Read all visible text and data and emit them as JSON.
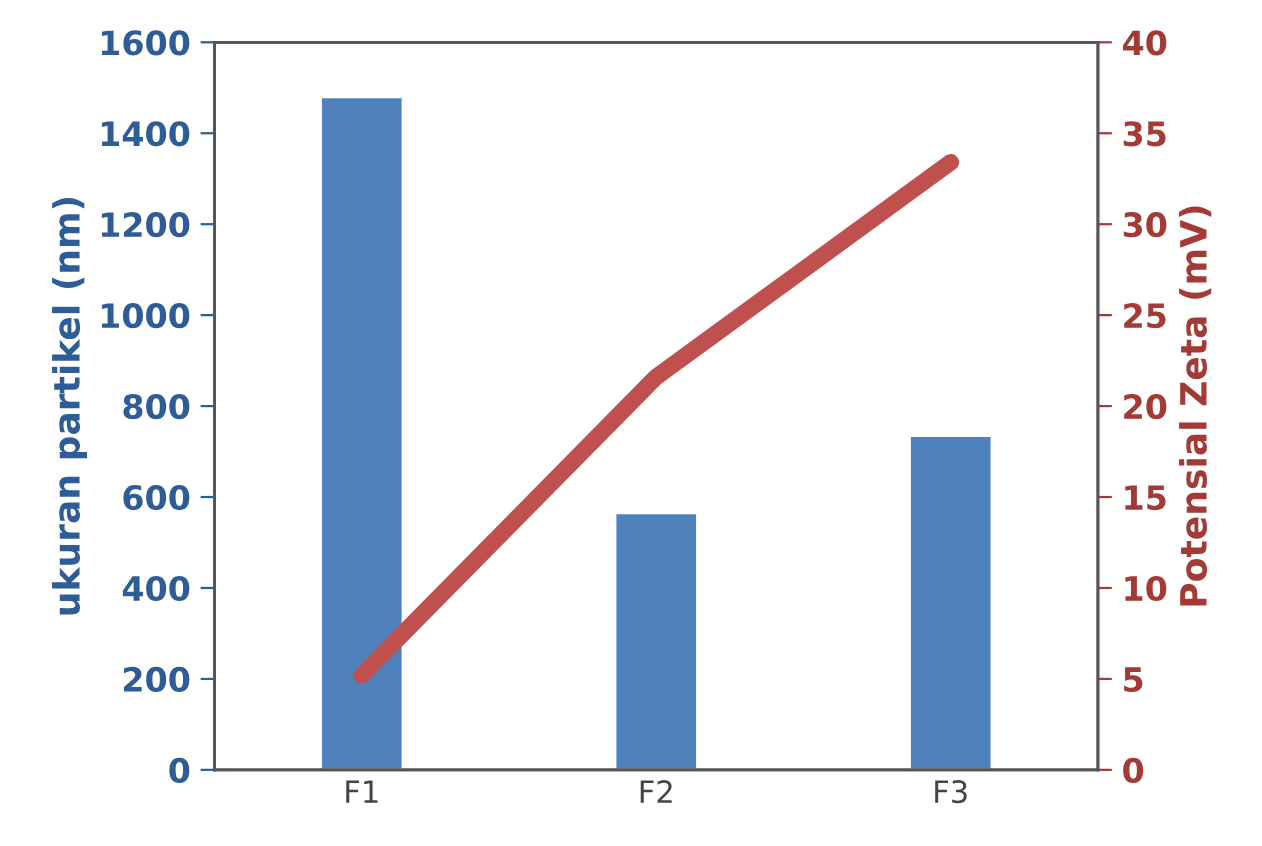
{
  "chart_data": {
    "type": "bar",
    "categories": [
      "F1",
      "F2",
      "F3"
    ],
    "ylabel": "ukuran partikel (nm)",
    "y2label": "Potensial Zeta (mV)",
    "ylim": [
      0,
      1600
    ],
    "yticks": [
      0,
      200,
      400,
      600,
      800,
      1000,
      1200,
      1400,
      1600
    ],
    "y2lim": [
      0,
      40
    ],
    "y2ticks": [
      0,
      5,
      10,
      15,
      20,
      25,
      30,
      35,
      40
    ],
    "grid": false,
    "legend": false,
    "series": [
      {
        "color": "#4f81bd",
        "values": [
          1480,
          565,
          735
        ]
      },
      {
        "type": "line",
        "axis": "y2",
        "color": "#c0504d",
        "values": [
          5.2,
          21.6,
          33.4
        ]
      }
    ]
  }
}
